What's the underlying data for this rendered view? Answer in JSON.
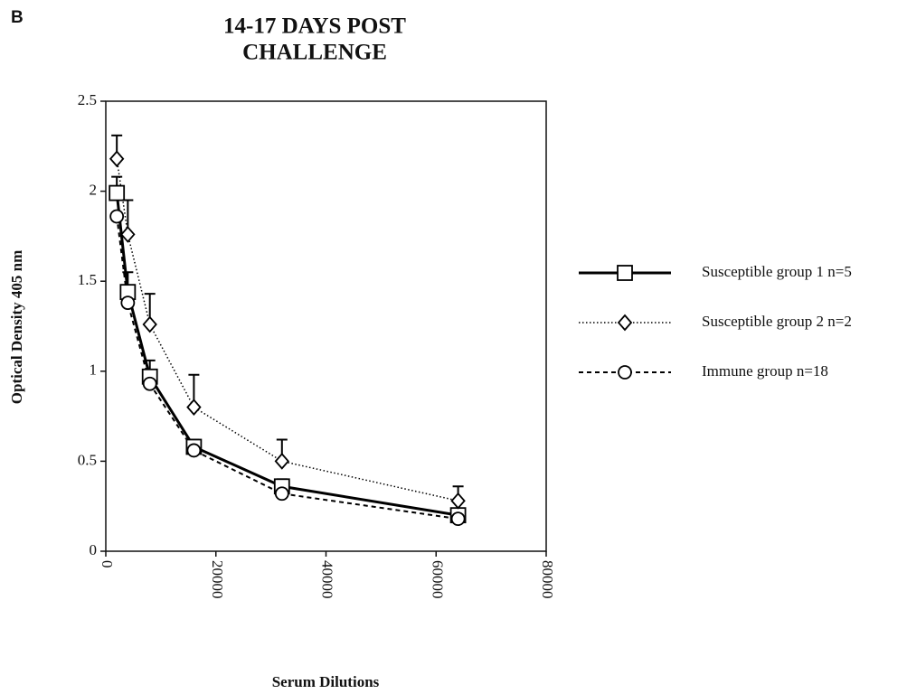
{
  "chart_data": {
    "type": "line",
    "panel_label": "B",
    "title": [
      "14-17 DAYS POST",
      "CHALLENGE"
    ],
    "x_label": "Serum Dilutions",
    "y_label": "Optical Density 405 nm",
    "x": [
      2000,
      4000,
      8000,
      16000,
      32000,
      64000
    ],
    "xlim": [
      0,
      80000
    ],
    "xticks": [
      0,
      20000,
      40000,
      60000,
      80000
    ],
    "ylim": [
      0,
      2.5
    ],
    "yticks": [
      0,
      0.5,
      1,
      1.5,
      2,
      2.5
    ],
    "legend": "right",
    "series": [
      {
        "name": "Susceptible group 1 n=5",
        "color": "#000000",
        "line_style": "solid",
        "marker": "square",
        "values": [
          1.99,
          1.44,
          0.97,
          0.58,
          0.36,
          0.2
        ],
        "errors": [
          0.09,
          0.11,
          0.09,
          0.04,
          0.04,
          0.03
        ]
      },
      {
        "name": "Susceptible group 2 n=2",
        "color": "#000000",
        "line_style": "dotted",
        "marker": "diamond",
        "values": [
          2.18,
          1.76,
          1.26,
          0.8,
          0.5,
          0.28
        ],
        "errors": [
          0.13,
          0.19,
          0.17,
          0.18,
          0.12,
          0.08
        ]
      },
      {
        "name": "Immune group n=18",
        "color": "#000000",
        "line_style": "dashed",
        "marker": "circle",
        "values": [
          1.86,
          1.38,
          0.93,
          0.56,
          0.32,
          0.18
        ]
      }
    ]
  }
}
